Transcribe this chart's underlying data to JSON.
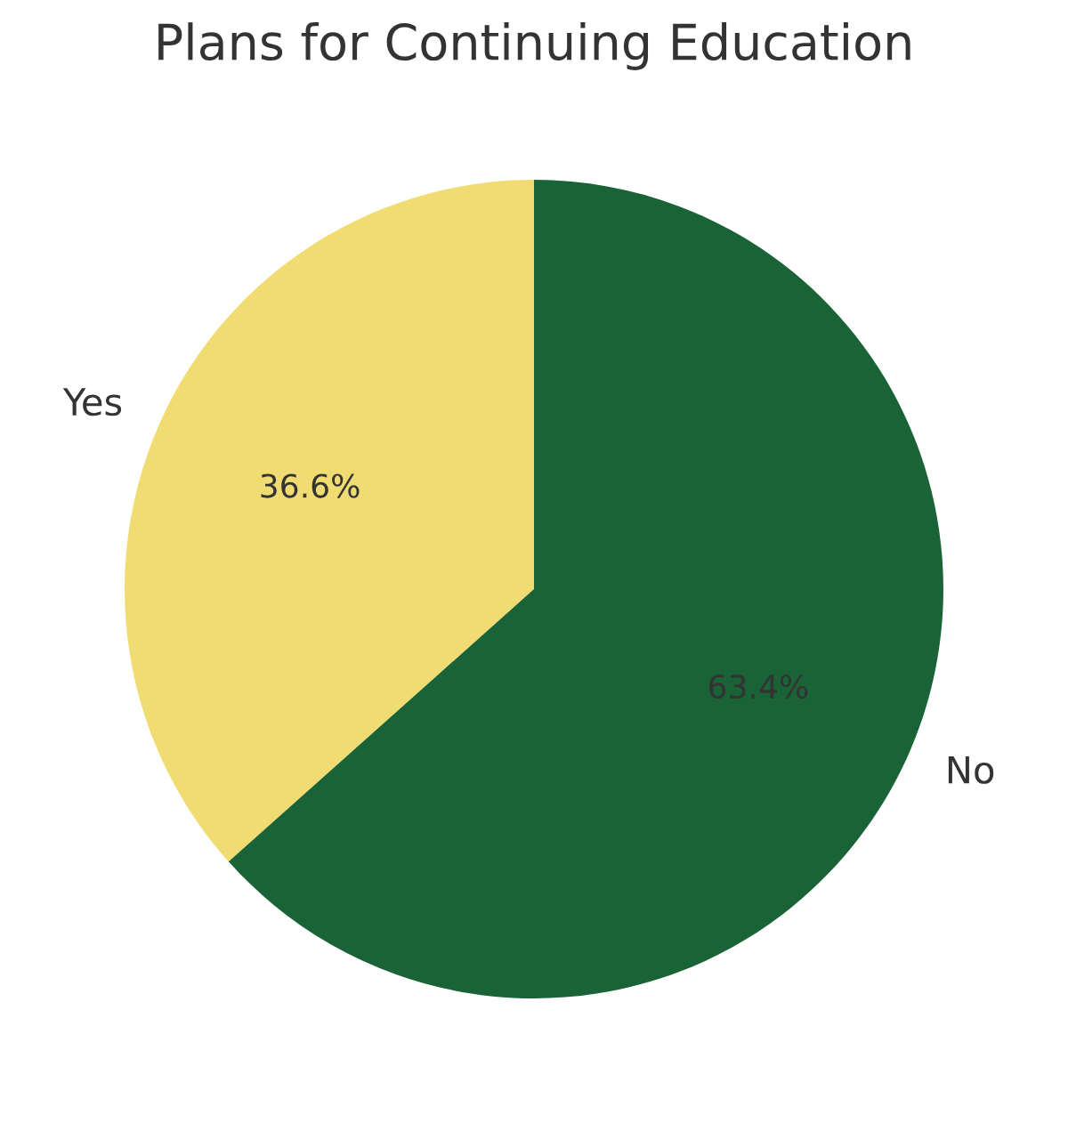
{
  "chart_data": {
    "type": "pie",
    "title": "Plans for Continuing Education",
    "categories": [
      "Yes",
      "No"
    ],
    "values": [
      36.6,
      63.4
    ],
    "value_labels": [
      "36.6%",
      "63.4%"
    ],
    "colors": [
      "#f0dc72",
      "#1a6336"
    ]
  }
}
